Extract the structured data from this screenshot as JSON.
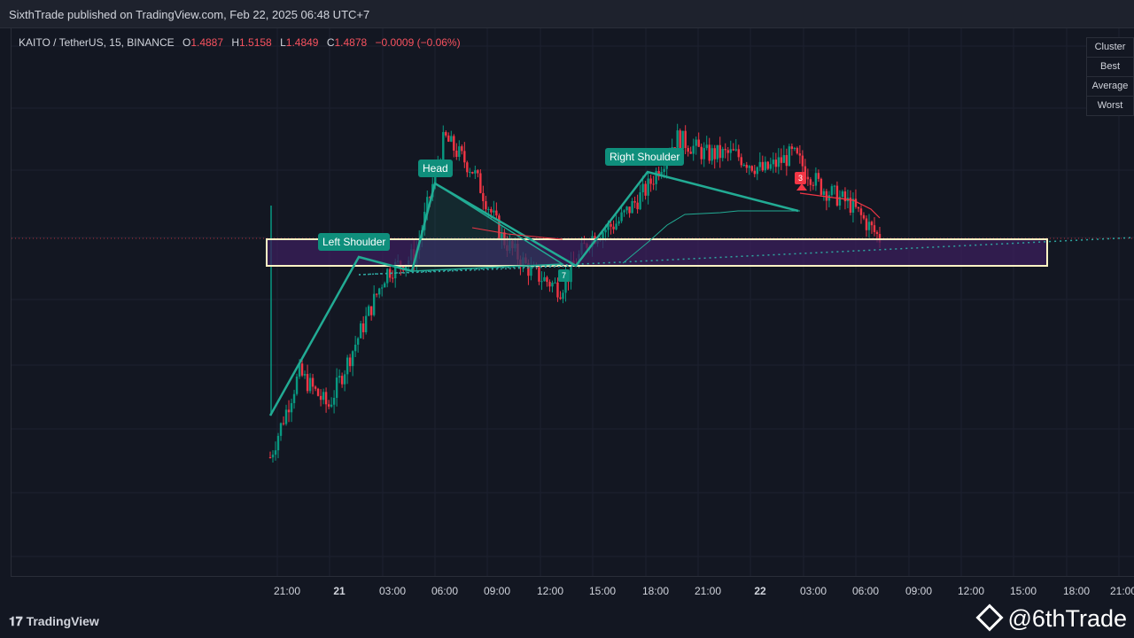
{
  "header": {
    "published": "SixthTrade published on TradingView.com, Feb 22, 2025 06:48 UTC+7"
  },
  "legend": {
    "symbol": "KAITO / TetherUS, 15, BINANCE",
    "o_label": "O",
    "o": "1.4887",
    "h_label": "H",
    "h": "1.5158",
    "l_label": "L",
    "l": "1.4849",
    "c_label": "C",
    "c": "1.4878",
    "change": "−0.0009 (−0.06%)"
  },
  "side_table": {
    "rows": [
      "Cluster",
      "Best",
      "Average",
      "Worst"
    ]
  },
  "patterns": {
    "left_shoulder": "Left Shoulder",
    "head": "Head",
    "right_shoulder": "Right Shoulder",
    "marker_green": "7",
    "marker_red": "3"
  },
  "x_axis": {
    "ticks": [
      "21:00",
      "21",
      "03:00",
      "06:00",
      "09:00",
      "12:00",
      "15:00",
      "18:00",
      "21:00",
      "22",
      "03:00",
      "06:00",
      "09:00",
      "12:00",
      "15:00",
      "18:00",
      "21:00"
    ]
  },
  "footer": {
    "brand": "TradingView",
    "handle": "@6thTrade"
  },
  "colors": {
    "background": "#131722",
    "up": "#089981",
    "down": "#f23645",
    "pattern": "#22ab94",
    "zone_fill": "#3b1f5c",
    "zone_border": "#fff3c4"
  },
  "chart_data": {
    "type": "candlestick",
    "legend_placement": "top-left",
    "grid": true,
    "approx_close_path": [
      1.36,
      1.41,
      1.39,
      1.43,
      1.47,
      1.48,
      1.55,
      1.53,
      1.49,
      1.47,
      1.46,
      1.49,
      1.5,
      1.52,
      1.55,
      1.54,
      1.54,
      1.53,
      1.54,
      1.52,
      1.51,
      1.49
    ]
  }
}
